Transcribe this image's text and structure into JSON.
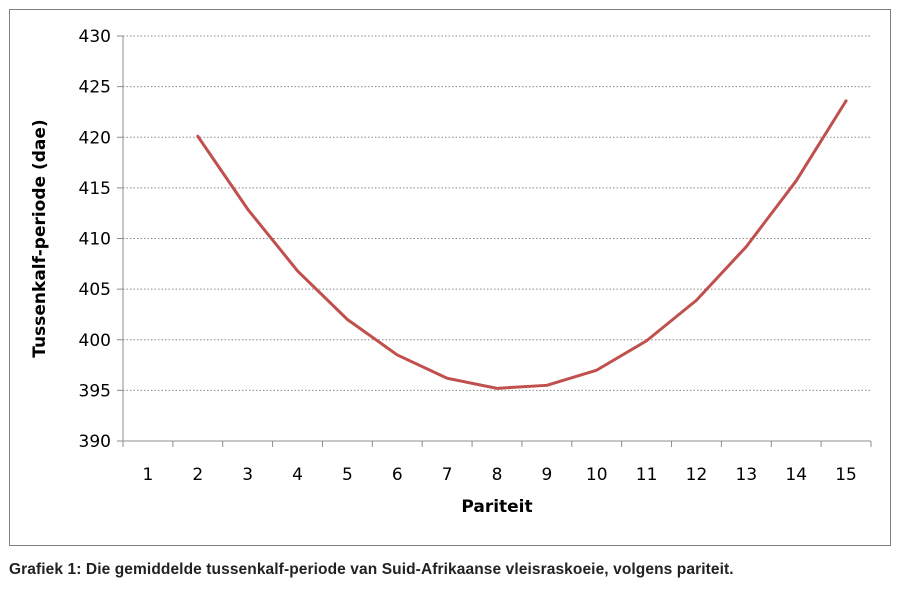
{
  "chart_data": {
    "type": "line",
    "x": [
      2,
      3,
      4,
      5,
      6,
      7,
      8,
      9,
      10,
      11,
      12,
      13,
      14,
      15
    ],
    "series": [
      {
        "values": [
          420.1,
          412.9,
          406.8,
          402.0,
          398.5,
          396.2,
          395.2,
          395.5,
          397.0,
          399.9,
          403.9,
          409.2,
          415.7,
          423.6
        ],
        "color": "#c0504d"
      }
    ],
    "categories": [
      "1",
      "2",
      "3",
      "4",
      "5",
      "6",
      "7",
      "8",
      "9",
      "10",
      "11",
      "12",
      "13",
      "14",
      "15"
    ],
    "xlabel": "Pariteit",
    "ylabel": "Tussenkalf-periode (dae)",
    "ylim": [
      390,
      430
    ],
    "yticks": [
      390,
      395,
      400,
      405,
      410,
      415,
      420,
      425,
      430
    ],
    "grid": true,
    "legend": "none"
  },
  "caption": "Grafiek 1: Die gemiddelde tussenkalf-periode van Suid-Afrikaanse vleisraskoeie, volgens pariteit."
}
